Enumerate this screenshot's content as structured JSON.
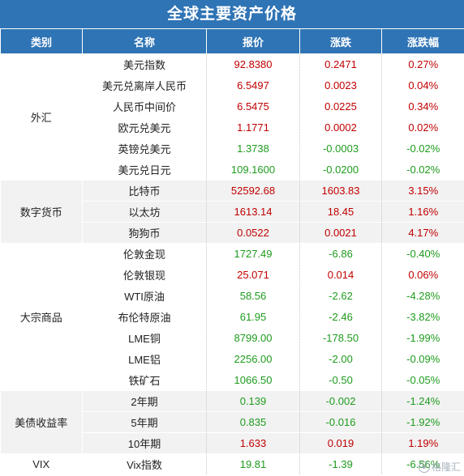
{
  "title": "全球主要资产价格",
  "headers": [
    "类别",
    "名称",
    "报价",
    "涨跌",
    "涨跌幅"
  ],
  "colors": {
    "header_bg": "#2f74b5",
    "up": "#c00000",
    "down": "#1e9b1e",
    "band_gray": "#f2f2f2"
  },
  "groups": [
    {
      "category": "外汇",
      "band": "white",
      "rows": [
        {
          "name": "美元指数",
          "price": "92.8380",
          "change": "0.2471",
          "pct": "0.27%",
          "price_dir": "up",
          "change_dir": "up",
          "pct_dir": "up"
        },
        {
          "name": "美元兑离岸人民币",
          "price": "6.5497",
          "change": "0.0023",
          "pct": "0.04%",
          "price_dir": "up",
          "change_dir": "up",
          "pct_dir": "up"
        },
        {
          "name": "人民币中间价",
          "price": "6.5475",
          "change": "0.0225",
          "pct": "0.34%",
          "price_dir": "up",
          "change_dir": "up",
          "pct_dir": "up"
        },
        {
          "name": "欧元兑美元",
          "price": "1.1771",
          "change": "0.0002",
          "pct": "0.02%",
          "price_dir": "up",
          "change_dir": "up",
          "pct_dir": "up"
        },
        {
          "name": "英镑兑美元",
          "price": "1.3738",
          "change": "-0.0003",
          "pct": "-0.02%",
          "price_dir": "down",
          "change_dir": "down",
          "pct_dir": "down"
        },
        {
          "name": "美元兑日元",
          "price": "109.1600",
          "change": "-0.0200",
          "pct": "-0.02%",
          "price_dir": "down",
          "change_dir": "down",
          "pct_dir": "down"
        }
      ]
    },
    {
      "category": "数字货币",
      "band": "gray",
      "rows": [
        {
          "name": "比特币",
          "price": "52592.68",
          "change": "1603.83",
          "pct": "3.15%",
          "price_dir": "up",
          "change_dir": "up",
          "pct_dir": "up"
        },
        {
          "name": "以太坊",
          "price": "1613.14",
          "change": "18.45",
          "pct": "1.16%",
          "price_dir": "up",
          "change_dir": "up",
          "pct_dir": "up"
        },
        {
          "name": "狗狗币",
          "price": "0.0522",
          "change": "0.0021",
          "pct": "4.17%",
          "price_dir": "up",
          "change_dir": "up",
          "pct_dir": "up"
        }
      ]
    },
    {
      "category": "大宗商品",
      "band": "white",
      "rows": [
        {
          "name": "伦敦金现",
          "price": "1727.49",
          "change": "-6.86",
          "pct": "-0.40%",
          "price_dir": "down",
          "change_dir": "down",
          "pct_dir": "down"
        },
        {
          "name": "伦敦银现",
          "price": "25.071",
          "change": "0.014",
          "pct": "0.06%",
          "price_dir": "up",
          "change_dir": "up",
          "pct_dir": "up"
        },
        {
          "name": "WTI原油",
          "price": "58.56",
          "change": "-2.62",
          "pct": "-4.28%",
          "price_dir": "down",
          "change_dir": "down",
          "pct_dir": "down"
        },
        {
          "name": "布伦特原油",
          "price": "61.95",
          "change": "-2.46",
          "pct": "-3.82%",
          "price_dir": "down",
          "change_dir": "down",
          "pct_dir": "down"
        },
        {
          "name": "LME铜",
          "price": "8799.00",
          "change": "-178.50",
          "pct": "-1.99%",
          "price_dir": "down",
          "change_dir": "down",
          "pct_dir": "down"
        },
        {
          "name": "LME铝",
          "price": "2256.00",
          "change": "-2.00",
          "pct": "-0.09%",
          "price_dir": "down",
          "change_dir": "down",
          "pct_dir": "down"
        },
        {
          "name": "铁矿石",
          "price": "1066.50",
          "change": "-0.50",
          "pct": "-0.05%",
          "price_dir": "down",
          "change_dir": "down",
          "pct_dir": "down"
        }
      ]
    },
    {
      "category": "美债收益率",
      "band": "gray",
      "rows": [
        {
          "name": "2年期",
          "price": "0.139",
          "change": "-0.002",
          "pct": "-1.24%",
          "price_dir": "down",
          "change_dir": "down",
          "pct_dir": "down"
        },
        {
          "name": "5年期",
          "price": "0.835",
          "change": "-0.016",
          "pct": "-1.92%",
          "price_dir": "down",
          "change_dir": "down",
          "pct_dir": "down"
        },
        {
          "name": "10年期",
          "price": "1.633",
          "change": "0.019",
          "pct": "1.19%",
          "price_dir": "up",
          "change_dir": "up",
          "pct_dir": "up"
        }
      ]
    },
    {
      "category": "VIX",
      "band": "white",
      "rows": [
        {
          "name": "Vix指数",
          "price": "19.81",
          "change": "-1.39",
          "pct": "-6.56%",
          "price_dir": "down",
          "change_dir": "down",
          "pct_dir": "down"
        }
      ]
    }
  ],
  "watermark": "格隆汇"
}
